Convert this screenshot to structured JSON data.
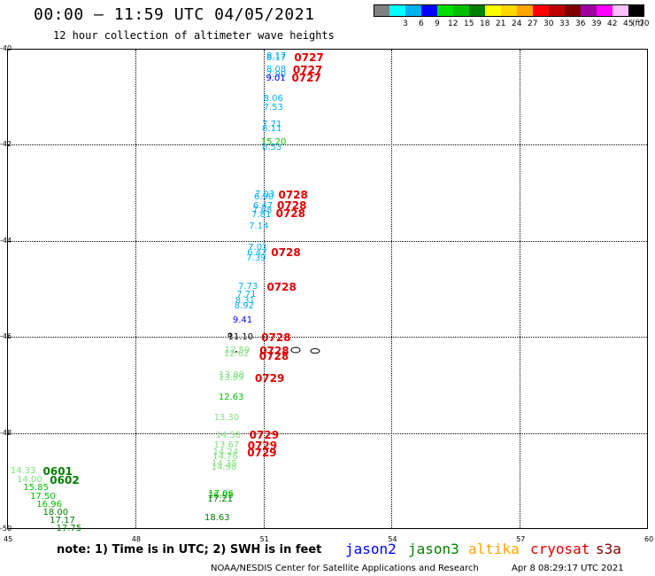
{
  "header": {
    "title": "00:00 – 11:59 UTC 04/05/2021",
    "subtitle": "12 hour collection of altimeter wave heights"
  },
  "legend": {
    "unit": "(ft)",
    "scale": [
      {
        "label": "",
        "color": "#808080"
      },
      {
        "label": "3",
        "color": "#00ffff"
      },
      {
        "label": "6",
        "color": "#00b0f0"
      },
      {
        "label": "9",
        "color": "#0000ff"
      },
      {
        "label": "12",
        "color": "#00e000"
      },
      {
        "label": "15",
        "color": "#00c000"
      },
      {
        "label": "18",
        "color": "#008000"
      },
      {
        "label": "21",
        "color": "#ffff00"
      },
      {
        "label": "24",
        "color": "#ffd700"
      },
      {
        "label": "27",
        "color": "#ffa500"
      },
      {
        "label": "30",
        "color": "#ff0000"
      },
      {
        "label": "33",
        "color": "#c00000"
      },
      {
        "label": "36",
        "color": "#800000"
      },
      {
        "label": "39",
        "color": "#a000a0"
      },
      {
        "label": "42",
        "color": "#ff00ff"
      },
      {
        "label": "45",
        "color": "#ffc0ff"
      },
      {
        "label": "70",
        "color": "#000000"
      }
    ]
  },
  "map": {
    "lat_ticks": [
      "-40",
      "-42",
      "-44",
      "-46",
      "-48",
      "-50"
    ],
    "lon_ticks": [
      "45",
      "48",
      "51",
      "54",
      "57",
      "60"
    ]
  },
  "observations": [
    {
      "v": "8.17",
      "c": "#00b0f0",
      "lon": 51.07,
      "lat": -40.17
    },
    {
      "v": "8.17",
      "c": "#00b0f0",
      "lon": 51.07,
      "lat": -40.21
    },
    {
      "v": "8.08",
      "c": "#00b0f0",
      "lon": 51.07,
      "lat": -40.45
    },
    {
      "v": "7.90",
      "c": "#00b0f0",
      "lon": 51.07,
      "lat": -40.55
    },
    {
      "v": "9.01",
      "c": "#0000ff",
      "lon": 51.06,
      "lat": -40.63
    },
    {
      "v": "8.06",
      "c": "#00b0f0",
      "lon": 51.0,
      "lat": -41.05
    },
    {
      "v": "7.53",
      "c": "#00b0f0",
      "lon": 51.0,
      "lat": -41.23
    },
    {
      "v": "7.71",
      "c": "#00b0f0",
      "lon": 50.97,
      "lat": -41.58
    },
    {
      "v": "8.11",
      "c": "#00b0f0",
      "lon": 50.97,
      "lat": -41.67
    },
    {
      "v": "15.20",
      "c": "#00c000",
      "lon": 50.94,
      "lat": -41.96
    },
    {
      "v": "8.53",
      "c": "#00b0f0",
      "lon": 50.97,
      "lat": -42.06
    },
    {
      "v": "7.03",
      "c": "#00b0f0",
      "lon": 50.8,
      "lat": -43.04
    },
    {
      "v": "6.90",
      "c": "#00b0f0",
      "lon": 50.78,
      "lat": -43.1
    },
    {
      "v": "6.47",
      "c": "#00b0f0",
      "lon": 50.76,
      "lat": -43.29
    },
    {
      "v": "7.68",
      "c": "#00b0f0",
      "lon": 50.74,
      "lat": -43.38
    },
    {
      "v": "7.81",
      "c": "#00b0f0",
      "lon": 50.72,
      "lat": -43.46
    },
    {
      "v": "7.14",
      "c": "#00b0f0",
      "lon": 50.66,
      "lat": -43.71
    },
    {
      "v": "7.01",
      "c": "#00b0f0",
      "lon": 50.64,
      "lat": -44.16
    },
    {
      "v": "6.42",
      "c": "#00b0f0",
      "lon": 50.62,
      "lat": -44.26
    },
    {
      "v": "7.39",
      "c": "#00b0f0",
      "lon": 50.6,
      "lat": -44.38
    },
    {
      "v": "7.73",
      "c": "#00b0f0",
      "lon": 50.41,
      "lat": -44.96
    },
    {
      "v": "7.71",
      "c": "#00b0f0",
      "lon": 50.37,
      "lat": -45.13
    },
    {
      "v": "8.31",
      "c": "#00b0f0",
      "lon": 50.34,
      "lat": -45.25
    },
    {
      "v": "8.92",
      "c": "#00b0f0",
      "lon": 50.32,
      "lat": -45.36
    },
    {
      "v": "9.41",
      "c": "#0000ff",
      "lon": 50.28,
      "lat": -45.67
    },
    {
      "v": "11.10",
      "c": "#000000",
      "lon": 50.17,
      "lat": -46.02
    },
    {
      "v": "12.59",
      "c": "#80e080",
      "lon": 50.09,
      "lat": -46.29
    },
    {
      "v": "12.62",
      "c": "#80e080",
      "lon": 50.07,
      "lat": -46.37
    },
    {
      "v": "13.88",
      "c": "#80e080",
      "lon": 49.96,
      "lat": -46.81
    },
    {
      "v": "13.89",
      "c": "#80e080",
      "lon": 49.95,
      "lat": -46.86
    },
    {
      "v": "12.63",
      "c": "#00c000",
      "lon": 49.95,
      "lat": -47.27
    },
    {
      "v": "13.30",
      "c": "#80e080",
      "lon": 49.84,
      "lat": -47.7
    },
    {
      "v": "14.58",
      "c": "#80e080",
      "lon": 49.88,
      "lat": -48.06
    },
    {
      "v": "13.67",
      "c": "#80e080",
      "lon": 49.84,
      "lat": -48.26
    },
    {
      "v": "14.24",
      "c": "#80e080",
      "lon": 49.82,
      "lat": -48.42
    },
    {
      "v": "14.76",
      "c": "#80e080",
      "lon": 49.81,
      "lat": -48.5
    },
    {
      "v": "14.35",
      "c": "#80e080",
      "lon": 49.79,
      "lat": -48.66
    },
    {
      "v": "14.98",
      "c": "#80e080",
      "lon": 49.78,
      "lat": -48.72
    },
    {
      "v": "17.06",
      "c": "#00c000",
      "lon": 49.71,
      "lat": -49.28
    },
    {
      "v": "16.93",
      "c": "#00c000",
      "lon": 49.7,
      "lat": -49.32
    },
    {
      "v": "17.21",
      "c": "#008000",
      "lon": 49.69,
      "lat": -49.4
    },
    {
      "v": "18.63",
      "c": "#008000",
      "lon": 49.62,
      "lat": -49.78
    },
    {
      "v": "14.33",
      "c": "#80e080",
      "lon": 45.08,
      "lat": -48.8
    },
    {
      "v": "14.00",
      "c": "#80e080",
      "lon": 45.23,
      "lat": -48.98
    },
    {
      "v": "15.85",
      "c": "#00c000",
      "lon": 45.38,
      "lat": -49.16
    },
    {
      "v": "17.50",
      "c": "#00c000",
      "lon": 45.54,
      "lat": -49.33
    },
    {
      "v": "16.96",
      "c": "#00c000",
      "lon": 45.69,
      "lat": -49.5
    },
    {
      "v": "18.00",
      "c": "#008000",
      "lon": 45.84,
      "lat": -49.67
    },
    {
      "v": "17.17",
      "c": "#008000",
      "lon": 46.0,
      "lat": -49.84
    },
    {
      "v": "17.75",
      "c": "#008000",
      "lon": 46.15,
      "lat": -50.0
    }
  ],
  "pass_times": [
    {
      "t": "0727",
      "c": "#e00000",
      "lon": 51.72,
      "lat": -40.19
    },
    {
      "t": "0727",
      "c": "#e00000",
      "lon": 51.69,
      "lat": -40.45
    },
    {
      "t": "0727",
      "c": "#e00000",
      "lon": 51.66,
      "lat": -40.6
    },
    {
      "t": "0728",
      "c": "#e00000",
      "lon": 51.35,
      "lat": -43.04
    },
    {
      "t": "0728",
      "c": "#e00000",
      "lon": 51.32,
      "lat": -43.26
    },
    {
      "t": "0728",
      "c": "#e00000",
      "lon": 51.29,
      "lat": -43.44
    },
    {
      "t": "0728",
      "c": "#e00000",
      "lon": 51.18,
      "lat": -44.24
    },
    {
      "t": "0728",
      "c": "#e00000",
      "lon": 51.08,
      "lat": -44.96
    },
    {
      "t": "0728",
      "c": "#e00000",
      "lon": 50.95,
      "lat": -46.02
    },
    {
      "t": "0728",
      "c": "#e00000",
      "lon": 50.91,
      "lat": -46.29
    },
    {
      "t": "0728",
      "c": "#e00000",
      "lon": 50.9,
      "lat": -46.4
    },
    {
      "t": "0729",
      "c": "#e00000",
      "lon": 50.8,
      "lat": -46.86
    },
    {
      "t": "0729",
      "c": "#e00000",
      "lon": 50.67,
      "lat": -48.04
    },
    {
      "t": "0729",
      "c": "#e00000",
      "lon": 50.63,
      "lat": -48.26
    },
    {
      "t": "0729",
      "c": "#e00000",
      "lon": 50.62,
      "lat": -48.42
    },
    {
      "t": "0601",
      "c": "#008000",
      "lon": 45.84,
      "lat": -48.8
    },
    {
      "t": "0602",
      "c": "#008000",
      "lon": 46.0,
      "lat": -48.98
    }
  ],
  "footer": {
    "note": "note:  1) Time is in UTC;  2) SWH is in feet",
    "satellites": [
      {
        "name": "jason2",
        "color": "#0000ff"
      },
      {
        "name": "jason3",
        "color": "#008000"
      },
      {
        "name": "altika",
        "color": "#ffa500"
      },
      {
        "name": "cryosat",
        "color": "#e00000"
      },
      {
        "name": "s3a",
        "color": "#800000"
      }
    ],
    "credit": "NOAA/NESDIS Center for Satellite Applications and Research",
    "generated": "Apr  8 08:29:17 UTC 2021"
  }
}
